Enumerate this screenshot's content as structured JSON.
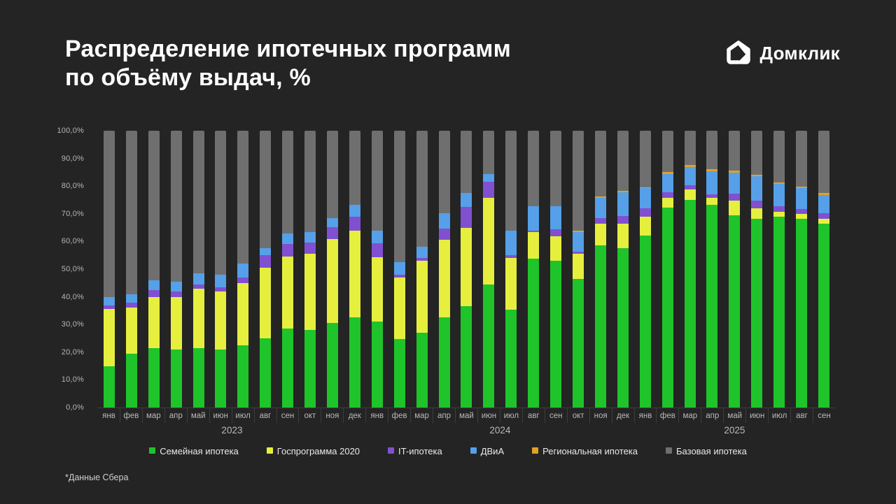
{
  "title_line1": "Распределение ипотечных программ",
  "title_line2": "по объёму выдач, %",
  "logo_text": "Домклик",
  "footnote": "*Данные Сбера",
  "colors": {
    "background": "#242424",
    "family": "#1fc42a",
    "gosprogram": "#e6ef3e",
    "it": "#8150d0",
    "dvia": "#55a0e8",
    "regional": "#dfa228",
    "base": "#6f6f6f",
    "axis_text": "#b9b9b9"
  },
  "chart_data": {
    "type": "bar",
    "stacked": true,
    "title": "Распределение ипотечных программ по объёму выдач, %",
    "xlabel": "",
    "ylabel": "",
    "ylim": [
      0,
      100
    ],
    "yticks": [
      "100,0%",
      "90,0%",
      "80,0%",
      "70,0%",
      "60,0%",
      "50,0%",
      "40,0%",
      "30,0%",
      "20,0%",
      "10,0%",
      "0,0%"
    ],
    "ytick_values": [
      100,
      90,
      80,
      70,
      60,
      50,
      40,
      30,
      20,
      10,
      0
    ],
    "grid": false,
    "legend_position": "bottom",
    "categories": [
      "янв",
      "фев",
      "мар",
      "апр",
      "май",
      "июн",
      "июл",
      "авг",
      "сен",
      "окт",
      "ноя",
      "дек",
      "янв",
      "фев",
      "мар",
      "апр",
      "май",
      "июн",
      "июл",
      "авг",
      "сен",
      "окт",
      "ноя",
      "дек",
      "янв",
      "фев",
      "мар",
      "апр",
      "май",
      "июн",
      "июл",
      "авг",
      "сен"
    ],
    "year_groups": [
      {
        "label": "2023",
        "count": 12
      },
      {
        "label": "2024",
        "count": 12
      },
      {
        "label": "2025",
        "count": 9
      }
    ],
    "series": [
      {
        "name": "Семейная ипотека",
        "color_key": "family",
        "values": [
          15.0,
          19.5,
          21.5,
          21.0,
          21.5,
          21.0,
          22.5,
          25.0,
          28.5,
          28.0,
          30.5,
          32.7,
          31.0,
          24.7,
          27.0,
          32.5,
          36.7,
          44.5,
          35.3,
          53.7,
          53.0,
          46.4,
          58.6,
          57.7,
          62.0,
          72.1,
          75.0,
          73.3,
          69.5,
          68.3,
          68.9,
          68.1,
          66.4
        ]
      },
      {
        "name": "Госпрограмма 2020",
        "color_key": "gosprogram",
        "values": [
          20.5,
          16.5,
          18.5,
          19.0,
          21.5,
          21.0,
          22.5,
          25.5,
          26.0,
          27.5,
          30.4,
          31.2,
          23.2,
          22.3,
          26.0,
          28.0,
          28.2,
          31.2,
          18.7,
          9.6,
          8.9,
          9.1,
          7.8,
          8.7,
          6.9,
          3.6,
          3.8,
          2.4,
          5.3,
          3.6,
          1.7,
          1.8,
          1.9
        ]
      },
      {
        "name": "IT-ипотека",
        "color_key": "it",
        "values": [
          1.5,
          2.0,
          2.5,
          2.0,
          1.5,
          1.5,
          2.0,
          4.5,
          4.5,
          4.0,
          4.3,
          5.0,
          5.1,
          1.0,
          1.0,
          4.2,
          7.5,
          5.9,
          1.0,
          0.6,
          2.5,
          0.8,
          2.1,
          2.7,
          3.0,
          2.1,
          1.5,
          1.2,
          2.4,
          2.8,
          2.1,
          1.7,
          1.9
        ]
      },
      {
        "name": "ДВиА",
        "color_key": "dvia",
        "values": [
          3.0,
          3.0,
          3.5,
          3.5,
          4.0,
          4.5,
          5.0,
          2.5,
          4.0,
          4.0,
          3.3,
          4.4,
          4.6,
          4.5,
          4.1,
          5.5,
          5.1,
          2.7,
          8.9,
          8.8,
          8.3,
          7.1,
          7.2,
          8.8,
          7.3,
          6.5,
          6.6,
          8.5,
          7.7,
          9.0,
          8.2,
          7.6,
          6.7
        ]
      },
      {
        "name": "Региональная ипотека",
        "color_key": "regional",
        "values": [
          0,
          0,
          0,
          0,
          0,
          0,
          0,
          0,
          0,
          0,
          0,
          0,
          0,
          0,
          0,
          0,
          0,
          0,
          0,
          0,
          0,
          0.5,
          0.5,
          0.5,
          0.3,
          0.7,
          0.7,
          0.8,
          0.7,
          0.4,
          0.5,
          0.5,
          0.6
        ]
      },
      {
        "name": "Базовая ипотека",
        "color_key": "base",
        "values": [
          60.0,
          59.0,
          54.0,
          54.5,
          51.5,
          52.0,
          48.0,
          42.5,
          37.0,
          36.5,
          31.5,
          26.7,
          36.1,
          47.5,
          41.9,
          29.8,
          22.5,
          15.7,
          36.1,
          27.3,
          27.3,
          36.1,
          23.8,
          21.6,
          20.5,
          15.0,
          12.4,
          13.8,
          14.4,
          15.9,
          18.6,
          20.3,
          22.5
        ]
      }
    ]
  }
}
